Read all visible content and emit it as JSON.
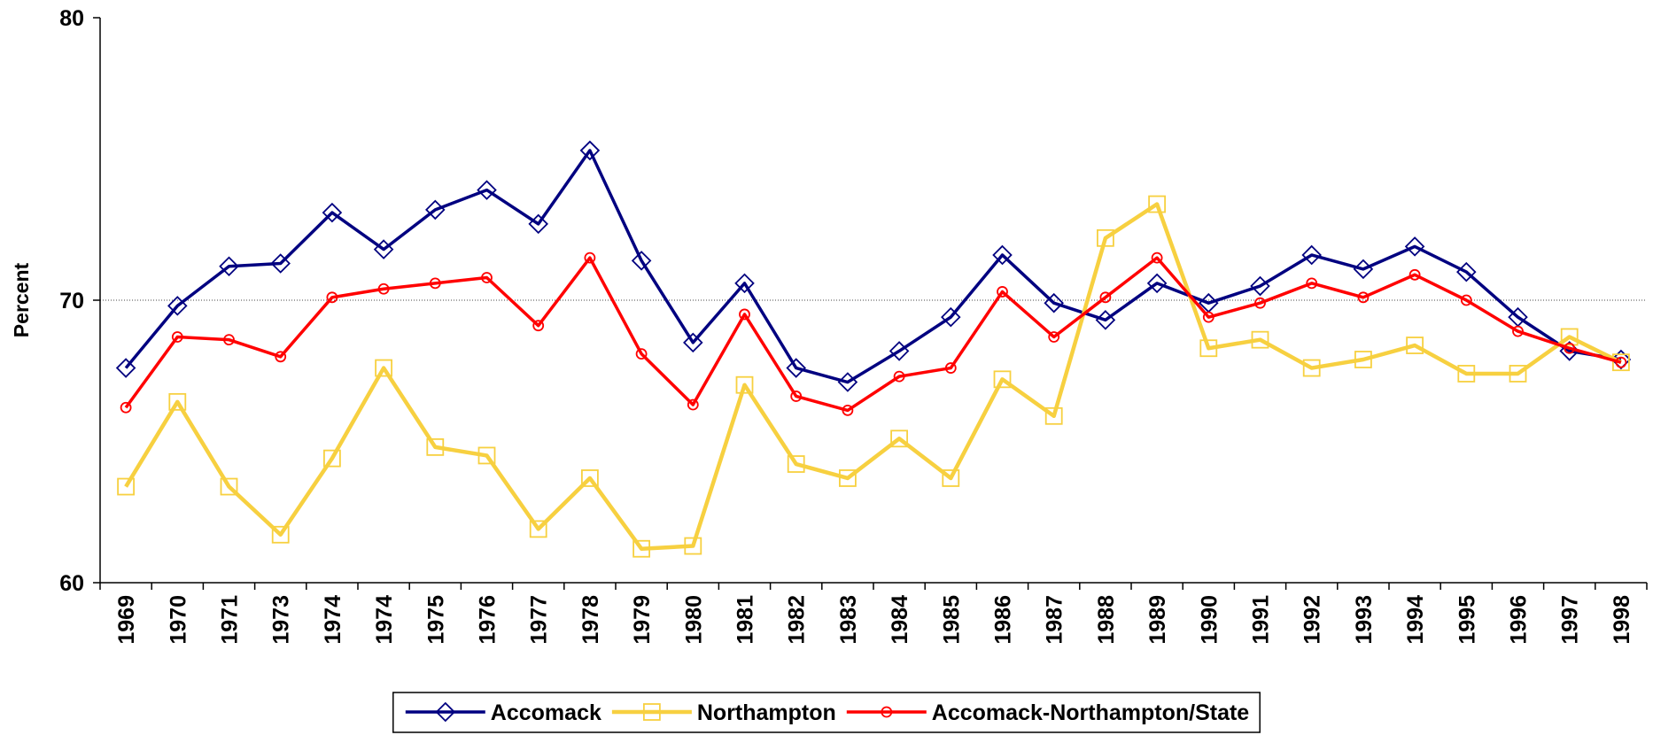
{
  "chart_data": {
    "type": "line",
    "y_label": "Percent",
    "categories": [
      "1969",
      "1970",
      "1971",
      "1973",
      "1974",
      "1974",
      "1975",
      "1976",
      "1977",
      "1978",
      "1979",
      "1980",
      "1981",
      "1982",
      "1983",
      "1984",
      "1985",
      "1986",
      "1987",
      "1988",
      "1989",
      "1990",
      "1991",
      "1992",
      "1993",
      "1994",
      "1995",
      "1996",
      "1997",
      "1998"
    ],
    "series": [
      {
        "name": "Accomack",
        "color": "#000080",
        "marker": "diamond",
        "values": [
          67.6,
          69.8,
          71.2,
          71.3,
          73.1,
          71.8,
          73.2,
          73.9,
          72.7,
          75.3,
          71.4,
          68.5,
          70.6,
          67.6,
          67.1,
          68.2,
          69.4,
          71.6,
          69.9,
          69.3,
          70.6,
          69.9,
          70.5,
          71.6,
          71.1,
          71.9,
          71.0,
          69.4,
          68.2,
          67.9
        ]
      },
      {
        "name": "Northampton",
        "color": "#f7d040",
        "marker": "square",
        "values": [
          63.4,
          66.4,
          63.4,
          61.7,
          64.4,
          67.6,
          64.8,
          64.5,
          61.9,
          63.7,
          61.2,
          61.3,
          67.0,
          64.2,
          63.7,
          65.1,
          63.7,
          67.2,
          65.9,
          72.2,
          73.4,
          68.3,
          68.6,
          67.6,
          67.9,
          68.4,
          67.4,
          67.4,
          68.7,
          67.8
        ]
      },
      {
        "name": "Accomack-Northampton/State",
        "color": "#ff0000",
        "marker": "circle",
        "values": [
          66.2,
          68.7,
          68.6,
          68.0,
          70.1,
          70.4,
          70.6,
          70.8,
          69.1,
          71.5,
          68.1,
          66.3,
          69.5,
          66.6,
          66.1,
          67.3,
          67.6,
          70.3,
          68.7,
          70.1,
          71.5,
          69.4,
          69.9,
          70.6,
          70.1,
          70.9,
          70.0,
          68.9,
          68.3,
          67.8
        ]
      }
    ],
    "ylim": [
      60,
      80
    ],
    "yticks": [
      60,
      70,
      80
    ],
    "grid": true,
    "legend": "bottom"
  }
}
